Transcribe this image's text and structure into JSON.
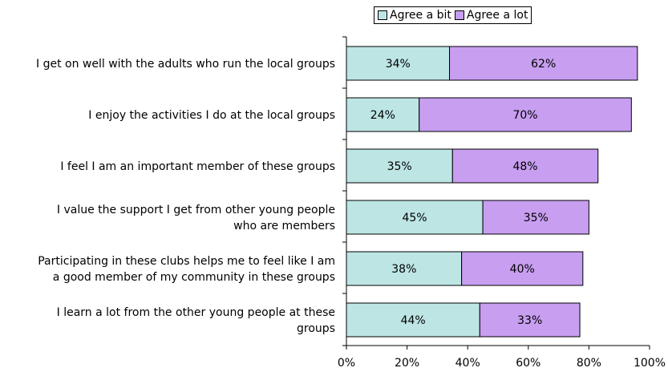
{
  "colors": {
    "agree_bit": "#bde5e4",
    "agree_lot": "#c79ef0",
    "axis": "#000000"
  },
  "legend": {
    "items": [
      {
        "label": "Agree a bit",
        "color_key": "agree_bit"
      },
      {
        "label": "Agree a lot",
        "color_key": "agree_lot"
      }
    ]
  },
  "chart_data": {
    "type": "bar",
    "orientation": "horizontal",
    "stacked": true,
    "categories": [
      [
        "I get on well with the adults who run the local groups"
      ],
      [
        "I enjoy the activities I do at the local groups"
      ],
      [
        "I feel I am an important member of these groups"
      ],
      [
        "I value the support I get from other young people",
        "who are members"
      ],
      [
        "Participating in these clubs helps me to feel like I am",
        "a good member of my community in these groups"
      ],
      [
        "I learn a lot from the other young people at these",
        "groups"
      ]
    ],
    "series": [
      {
        "name": "Agree a bit",
        "values": [
          34,
          24,
          35,
          45,
          38,
          44
        ],
        "labels": [
          "34%",
          "24%",
          "35%",
          "45%",
          "38%",
          "44%"
        ]
      },
      {
        "name": "Agree a lot",
        "values": [
          62,
          70,
          48,
          35,
          40,
          33
        ],
        "labels": [
          "62%",
          "70%",
          "48%",
          "35%",
          "40%",
          "33%"
        ]
      }
    ],
    "xlim": [
      0,
      100
    ],
    "xticks": [
      0,
      20,
      40,
      60,
      80,
      100
    ],
    "xtick_labels": [
      "0%",
      "20%",
      "40%",
      "60%",
      "80%",
      "100%"
    ],
    "grid": false,
    "legend_position": "top"
  }
}
